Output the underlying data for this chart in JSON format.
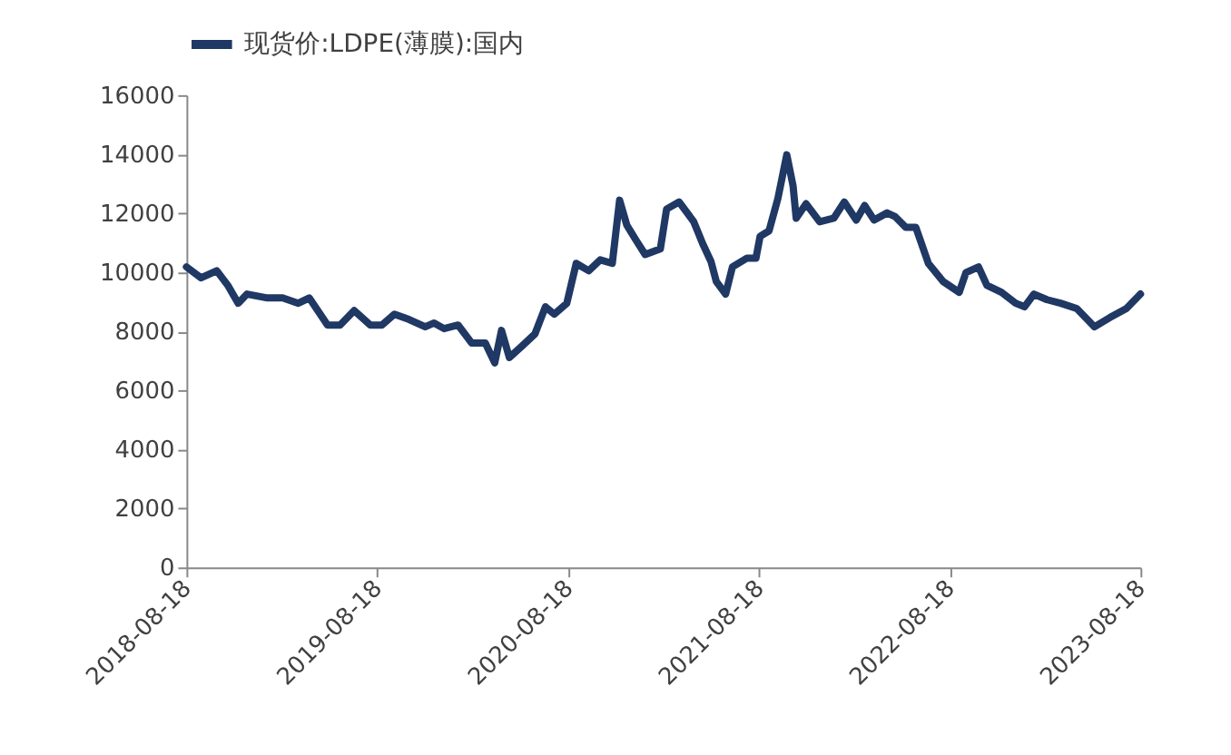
{
  "chart_data": {
    "type": "line",
    "legend": "top",
    "grid": false,
    "marker": "none",
    "line_style": "solid",
    "xlim": [
      "2018-08-18",
      "2023-08-18"
    ],
    "xticks": [
      "2018-08-18",
      "2019-08-18",
      "2020-08-18",
      "2021-08-18",
      "2022-08-18",
      "2023-08-18"
    ],
    "ylim": [
      0,
      16000
    ],
    "yticks": [
      0,
      2000,
      4000,
      6000,
      8000,
      10000,
      12000,
      14000,
      16000
    ],
    "x": [
      "2018-08-18",
      "2018-09-15",
      "2018-10-15",
      "2018-11-05",
      "2018-11-25",
      "2018-12-12",
      "2019-01-20",
      "2019-02-18",
      "2019-03-20",
      "2019-04-10",
      "2019-05-15",
      "2019-06-08",
      "2019-07-05",
      "2019-08-05",
      "2019-08-27",
      "2019-09-20",
      "2019-10-18",
      "2019-11-18",
      "2019-12-05",
      "2019-12-24",
      "2020-01-20",
      "2020-02-15",
      "2020-03-12",
      "2020-03-30",
      "2020-04-12",
      "2020-04-27",
      "2020-05-20",
      "2020-06-15",
      "2020-07-05",
      "2020-07-22",
      "2020-08-15",
      "2020-09-02",
      "2020-09-26",
      "2020-10-18",
      "2020-11-10",
      "2020-11-24",
      "2020-12-08",
      "2020-12-25",
      "2021-01-12",
      "2021-02-10",
      "2021-02-22",
      "2021-03-18",
      "2021-04-15",
      "2021-05-02",
      "2021-05-18",
      "2021-05-28",
      "2021-06-15",
      "2021-06-28",
      "2021-07-26",
      "2021-08-12",
      "2021-08-20",
      "2021-09-06",
      "2021-09-23",
      "2021-10-10",
      "2021-10-22",
      "2021-10-28",
      "2021-11-16",
      "2021-12-12",
      "2022-01-08",
      "2022-01-28",
      "2022-02-20",
      "2022-03-08",
      "2022-03-26",
      "2022-04-20",
      "2022-05-05",
      "2022-05-26",
      "2022-06-14",
      "2022-07-08",
      "2022-08-05",
      "2022-09-05",
      "2022-09-18",
      "2022-10-12",
      "2022-10-28",
      "2022-11-25",
      "2022-12-22",
      "2023-01-08",
      "2023-01-26",
      "2023-02-20",
      "2023-03-18",
      "2023-04-18",
      "2023-05-22",
      "2023-06-20",
      "2023-07-22",
      "2023-08-18"
    ],
    "series": [
      {
        "name": "现货价:LDPE(薄膜):国内",
        "color": "#203864",
        "values": [
          10180,
          9810,
          10050,
          9560,
          8950,
          9260,
          9130,
          9130,
          8950,
          9130,
          8210,
          8210,
          8700,
          8210,
          8210,
          8580,
          8400,
          8150,
          8280,
          8090,
          8210,
          7600,
          7600,
          6930,
          8030,
          7110,
          7480,
          7910,
          8830,
          8580,
          8950,
          10300,
          10050,
          10420,
          10300,
          12440,
          11590,
          11100,
          10600,
          10790,
          12140,
          12380,
          11710,
          10970,
          10360,
          9690,
          9260,
          10180,
          10480,
          10480,
          11220,
          11400,
          12500,
          13980,
          12930,
          11830,
          12320,
          11710,
          11830,
          12380,
          11770,
          12260,
          11770,
          12010,
          11890,
          11520,
          11520,
          10300,
          9690,
          9320,
          9990,
          10180,
          9560,
          9320,
          8950,
          8830,
          9260,
          9070,
          8950,
          8770,
          8150,
          8460,
          8770,
          9260
        ]
      }
    ]
  }
}
